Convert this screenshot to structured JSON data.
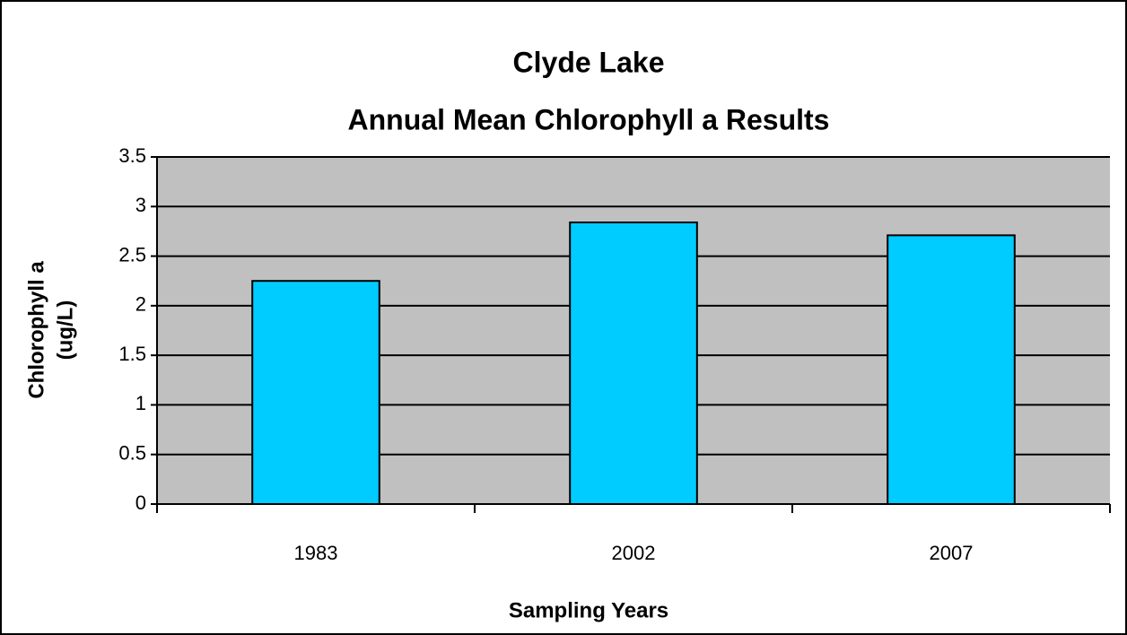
{
  "chart_data": {
    "type": "bar",
    "title": [
      "Clyde Lake",
      "Annual Mean Chlorophyll a Results"
    ],
    "ylabel": [
      "Chlorophyll a",
      "(ug/L)"
    ],
    "xlabel": "Sampling Years",
    "categories": [
      "1983",
      "2002",
      "2007"
    ],
    "values": [
      2.25,
      2.84,
      2.71
    ],
    "color": "#00ccff",
    "ylim": [
      0,
      3.5
    ],
    "yticks": [
      0,
      0.5,
      1,
      1.5,
      2,
      2.5,
      3,
      3.5
    ],
    "grid": true
  }
}
